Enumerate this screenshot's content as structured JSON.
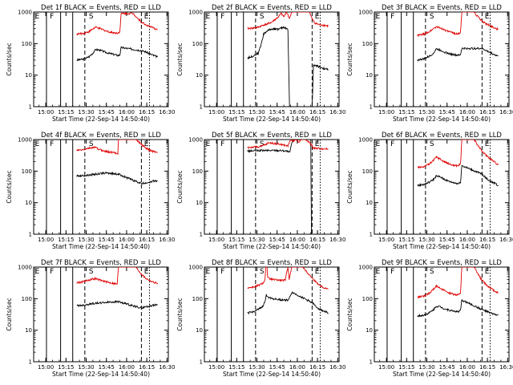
{
  "figure": {
    "ylabel": "Counts/sec",
    "start_time_label": "Start Time (22-Sep-14 14:50:40)"
  },
  "chart_data": [
    {
      "type": "line",
      "title": "Det 1f BLACK = Events, RED = LLD",
      "xlabel": "Start Time (22-Sep-14 14:50:40)",
      "ylabel": "Counts/sec",
      "x_ticks": [
        "15:00",
        "15:15",
        "15:30",
        "15:45",
        "16:00",
        "16:15",
        "16:30"
      ],
      "y_ticks": [
        "1",
        "10",
        "100",
        "1000"
      ],
      "ylog": true,
      "ylim": [
        1,
        1000
      ],
      "markers": [
        "E",
        "F",
        "S",
        "E"
      ],
      "series": [
        {
          "name": "BLACK = Events",
          "color": "#000000",
          "x": [
            0,
            5,
            9,
            12,
            14,
            17,
            19,
            22,
            25,
            28,
            30.5,
            32,
            33,
            48,
            51,
            54,
            57,
            60
          ],
          "y": [
            30,
            32,
            38,
            50,
            65,
            62,
            58,
            52,
            48,
            45,
            42,
            44,
            75,
            60,
            55,
            48,
            42,
            38
          ]
        },
        {
          "name": "RED = LLD",
          "color": "#e00000",
          "x": [
            0,
            5,
            9,
            12,
            14,
            17,
            19,
            22,
            25,
            28,
            30.5,
            32,
            33,
            42,
            45,
            48,
            51,
            54,
            57,
            60
          ],
          "y": [
            200,
            210,
            240,
            290,
            330,
            300,
            280,
            250,
            230,
            220,
            215,
            240,
            900,
            900,
            650,
            480,
            400,
            350,
            310,
            280
          ]
        }
      ]
    },
    {
      "type": "line",
      "title": "Det 2f BLACK = Events, RED = LLD",
      "xlabel": "Start Time (22-Sep-14 14:50:40)",
      "ylabel": "Counts/sec",
      "x_ticks": [
        "15:00",
        "15:15",
        "15:30",
        "15:45",
        "16:00",
        "16:15",
        "16:30"
      ],
      "y_ticks": [
        "1",
        "10",
        "100",
        "1000"
      ],
      "ylog": true,
      "ylim": [
        1,
        1000
      ],
      "markers": [
        "E",
        "F",
        "S",
        "E"
      ],
      "series": [
        {
          "name": "BLACK = Events",
          "color": "#000000",
          "x": [
            0,
            4,
            8,
            10,
            12,
            15,
            18,
            21,
            23,
            25,
            27,
            29,
            30,
            31,
            31.2,
            33,
            33.5,
            35,
            37,
            40,
            43,
            46,
            48,
            49,
            51,
            54,
            57,
            60
          ],
          "y": [
            35,
            40,
            50,
            90,
            200,
            260,
            290,
            300,
            280,
            310,
            330,
            300,
            280,
            3,
            1,
            1,
            1,
            1,
            1,
            1,
            1,
            1,
            1,
            20,
            20,
            18,
            16,
            15
          ]
        },
        {
          "name": "RED = LLD",
          "color": "#e00000",
          "x": [
            0,
            4,
            8,
            10,
            12,
            15,
            18,
            21,
            23,
            25,
            27,
            29,
            30,
            31,
            32,
            33,
            35,
            37,
            40,
            43,
            46,
            48,
            50,
            53,
            57,
            60
          ],
          "y": [
            300,
            310,
            330,
            360,
            390,
            420,
            480,
            600,
            700,
            900,
            700,
            1000,
            850,
            600,
            800,
            1000,
            1000,
            1000,
            1000,
            1000,
            1000,
            600,
            450,
            400,
            380,
            360
          ]
        }
      ]
    },
    {
      "type": "line",
      "title": "Det 3f BLACK = Events, RED = LLD",
      "xlabel": "Start Time (22-Sep-14 14:50:40)",
      "ylabel": "Counts/sec",
      "x_ticks": [
        "15:00",
        "15:15",
        "15:30",
        "15:45",
        "16:00",
        "16:15",
        "16:30"
      ],
      "y_ticks": [
        "1",
        "10",
        "100",
        "1000"
      ],
      "ylog": true,
      "ylim": [
        1,
        1000
      ],
      "markers": [
        "E",
        "F",
        "S",
        "E"
      ],
      "series": [
        {
          "name": "BLACK = Events",
          "color": "#000000",
          "x": [
            0,
            5,
            9,
            12,
            14,
            17,
            19,
            22,
            25,
            28,
            30.5,
            32,
            33,
            48,
            51,
            54,
            57,
            60
          ],
          "y": [
            30,
            33,
            40,
            50,
            68,
            62,
            57,
            50,
            46,
            44,
            42,
            45,
            70,
            70,
            60,
            52,
            45,
            40
          ]
        },
        {
          "name": "RED = LLD",
          "color": "#e00000",
          "x": [
            0,
            5,
            9,
            12,
            14,
            17,
            19,
            22,
            25,
            28,
            30.5,
            32,
            33,
            42,
            45,
            48,
            51,
            54,
            57,
            60
          ],
          "y": [
            180,
            200,
            240,
            300,
            340,
            310,
            290,
            250,
            225,
            210,
            200,
            230,
            1000,
            1000,
            700,
            520,
            420,
            370,
            320,
            280
          ]
        }
      ]
    },
    {
      "type": "line",
      "title": "Det 4f BLACK = Events, RED = LLD",
      "xlabel": "Start Time (22-Sep-14 14:50:40)",
      "ylabel": "Counts/sec",
      "x_ticks": [
        "15:00",
        "15:15",
        "15:30",
        "15:45",
        "16:00",
        "16:15",
        "16:30"
      ],
      "y_ticks": [
        "1",
        "10",
        "100",
        "1000"
      ],
      "ylog": true,
      "ylim": [
        1,
        1000
      ],
      "markers": [
        "E",
        "F",
        "S",
        "E"
      ],
      "series": [
        {
          "name": "BLACK = Events",
          "color": "#000000",
          "x": [
            0,
            5,
            9,
            12,
            14,
            17,
            19,
            22,
            25,
            28,
            30.5,
            31,
            48,
            51,
            54,
            57,
            60
          ],
          "y": [
            70,
            72,
            75,
            78,
            80,
            82,
            85,
            88,
            85,
            82,
            80,
            80,
            40,
            42,
            45,
            48,
            50
          ]
        },
        {
          "name": "RED = LLD",
          "color": "#e00000",
          "x": [
            0,
            4,
            8,
            12,
            14,
            16,
            19,
            22,
            25,
            28,
            30.5,
            31,
            44,
            48,
            51,
            54,
            57,
            60
          ],
          "y": [
            450,
            470,
            520,
            560,
            560,
            500,
            450,
            420,
            400,
            380,
            370,
            1000,
            1000,
            700,
            550,
            460,
            420,
            400
          ]
        }
      ]
    },
    {
      "type": "line",
      "title": "Det 5f BLACK = Events, RED = LLD",
      "xlabel": "Start Time (22-Sep-14 14:50:40)",
      "ylabel": "Counts/sec",
      "x_ticks": [
        "15:00",
        "15:15",
        "15:30",
        "15:45",
        "16:00",
        "16:15",
        "16:30"
      ],
      "y_ticks": [
        "1",
        "10",
        "100",
        "1000"
      ],
      "ylog": true,
      "ylim": [
        1,
        1000
      ],
      "markers": [
        "E",
        "F",
        "S",
        "E"
      ],
      "series": [
        {
          "name": "BLACK = Events",
          "color": "#000000",
          "x": [
            0,
            5,
            10,
            15,
            20,
            25,
            28,
            30,
            31,
            31.5,
            33,
            34.5,
            36,
            40,
            44,
            47,
            47.5,
            48,
            50,
            53,
            57,
            60
          ],
          "y": [
            430,
            440,
            450,
            450,
            455,
            450,
            440,
            420,
            380,
            420,
            800,
            1000,
            1000,
            1000,
            1000,
            1000,
            1,
            1,
            1,
            1,
            1,
            1
          ]
        },
        {
          "name": "RED = LLD",
          "color": "#e00000",
          "x": [
            0,
            5,
            10,
            13,
            16,
            20,
            25,
            28,
            30,
            31,
            32,
            34,
            36,
            38,
            40,
            43,
            46,
            48,
            48.5,
            50,
            53,
            57,
            60
          ],
          "y": [
            560,
            580,
            600,
            680,
            800,
            750,
            700,
            650,
            620,
            800,
            1000,
            900,
            1000,
            850,
            1000,
            1000,
            800,
            650,
            550,
            530,
            520,
            510,
            500
          ]
        }
      ]
    },
    {
      "type": "line",
      "title": "Det 6f BLACK = Events, RED = LLD",
      "xlabel": "Start Time (22-Sep-14 14:50:40)",
      "ylabel": "Counts/sec",
      "x_ticks": [
        "15:00",
        "15:15",
        "15:30",
        "15:45",
        "16:00",
        "16:15",
        "16:30"
      ],
      "y_ticks": [
        "1",
        "10",
        "100",
        "1000"
      ],
      "ylog": true,
      "ylim": [
        1,
        1000
      ],
      "markers": [
        "E",
        "F",
        "S",
        "E"
      ],
      "series": [
        {
          "name": "BLACK = Events",
          "color": "#000000",
          "x": [
            0,
            5,
            9,
            12,
            14,
            17,
            19,
            22,
            25,
            28,
            30.5,
            32,
            33,
            48,
            51,
            54,
            57,
            60
          ],
          "y": [
            35,
            38,
            45,
            55,
            70,
            65,
            58,
            50,
            45,
            42,
            40,
            45,
            150,
            80,
            60,
            48,
            42,
            35
          ]
        },
        {
          "name": "RED = LLD",
          "color": "#e00000",
          "x": [
            0,
            5,
            9,
            12,
            14,
            17,
            19,
            22,
            25,
            28,
            30.5,
            32,
            33,
            42,
            45,
            48,
            51,
            54,
            57,
            60
          ],
          "y": [
            130,
            140,
            170,
            220,
            280,
            240,
            210,
            180,
            160,
            150,
            150,
            170,
            1000,
            1000,
            650,
            420,
            320,
            250,
            200,
            160
          ]
        }
      ]
    },
    {
      "type": "line",
      "title": "Det 7f BLACK = Events, RED = LLD",
      "xlabel": "Start Time (22-Sep-14 14:50:40)",
      "ylabel": "Counts/sec",
      "x_ticks": [
        "15:00",
        "15:15",
        "15:30",
        "15:45",
        "16:00",
        "16:15",
        "16:30"
      ],
      "y_ticks": [
        "1",
        "10",
        "100",
        "1000"
      ],
      "ylog": true,
      "ylim": [
        1,
        1000
      ],
      "markers": [
        "E",
        "F",
        "S",
        "E"
      ],
      "series": [
        {
          "name": "BLACK = Events",
          "color": "#000000",
          "x": [
            0,
            5,
            10,
            15,
            20,
            25,
            30,
            31,
            48,
            51,
            54,
            57,
            60
          ],
          "y": [
            60,
            62,
            68,
            72,
            75,
            78,
            80,
            80,
            50,
            55,
            58,
            62,
            65
          ]
        },
        {
          "name": "RED = LLD",
          "color": "#e00000",
          "x": [
            0,
            4,
            8,
            12,
            14,
            16,
            19,
            22,
            25,
            28,
            30,
            31,
            44,
            48,
            51,
            54,
            57,
            60
          ],
          "y": [
            320,
            340,
            380,
            420,
            430,
            400,
            370,
            340,
            320,
            300,
            290,
            1000,
            1000,
            600,
            450,
            380,
            330,
            310
          ]
        }
      ]
    },
    {
      "type": "line",
      "title": "Det 8f BLACK = Events, RED = LLD",
      "xlabel": "Start Time (22-Sep-14 14:50:40)",
      "ylabel": "Counts/sec",
      "x_ticks": [
        "15:00",
        "15:15",
        "15:30",
        "15:45",
        "16:00",
        "16:15",
        "16:30"
      ],
      "y_ticks": [
        "1",
        "10",
        "100",
        "1000"
      ],
      "ylog": true,
      "ylim": [
        1,
        1000
      ],
      "markers": [
        "E",
        "F",
        "S",
        "E"
      ],
      "series": [
        {
          "name": "BLACK = Events",
          "color": "#000000",
          "x": [
            0,
            4,
            8,
            11,
            13,
            14,
            16,
            19,
            22,
            25,
            28,
            30,
            31,
            32,
            33,
            48,
            51,
            54,
            57,
            60
          ],
          "y": [
            35,
            38,
            45,
            55,
            80,
            130,
            110,
            100,
            95,
            92,
            90,
            90,
            100,
            130,
            160,
            75,
            55,
            45,
            40,
            35
          ]
        },
        {
          "name": "RED = LLD",
          "color": "#e00000",
          "x": [
            0,
            4,
            8,
            11,
            13,
            13.5,
            14.5,
            15,
            17,
            19,
            22,
            25,
            28,
            30,
            31,
            32,
            33,
            41,
            44,
            48,
            51,
            54,
            57,
            60
          ],
          "y": [
            220,
            230,
            260,
            300,
            380,
            1000,
            1000,
            450,
            420,
            400,
            390,
            380,
            380,
            1000,
            420,
            700,
            1000,
            1000,
            700,
            450,
            330,
            260,
            220,
            200
          ]
        }
      ]
    },
    {
      "type": "line",
      "title": "Det 9f BLACK = Events, RED = LLD",
      "xlabel": "Start Time (22-Sep-14 14:50:40)",
      "ylabel": "Counts/sec",
      "x_ticks": [
        "15:00",
        "15:15",
        "15:30",
        "15:45",
        "16:00",
        "16:15",
        "16:30"
      ],
      "y_ticks": [
        "1",
        "10",
        "100",
        "1000"
      ],
      "ylog": true,
      "ylim": [
        1,
        1000
      ],
      "markers": [
        "E",
        "F",
        "S",
        "E"
      ],
      "series": [
        {
          "name": "BLACK = Events",
          "color": "#000000",
          "x": [
            0,
            5,
            9,
            12,
            14,
            17,
            19,
            22,
            25,
            28,
            30.5,
            32,
            33,
            48,
            51,
            54,
            57,
            60
          ],
          "y": [
            28,
            30,
            36,
            45,
            58,
            55,
            50,
            45,
            42,
            40,
            38,
            42,
            90,
            45,
            40,
            35,
            32,
            30
          ]
        },
        {
          "name": "RED = LLD",
          "color": "#e00000",
          "x": [
            0,
            5,
            9,
            12,
            14,
            17,
            19,
            22,
            25,
            28,
            30.5,
            32,
            33,
            42,
            45,
            48,
            51,
            54,
            57,
            60
          ],
          "y": [
            110,
            120,
            150,
            200,
            250,
            220,
            190,
            160,
            145,
            135,
            130,
            150,
            1000,
            1000,
            600,
            380,
            280,
            220,
            180,
            150
          ]
        }
      ]
    }
  ]
}
